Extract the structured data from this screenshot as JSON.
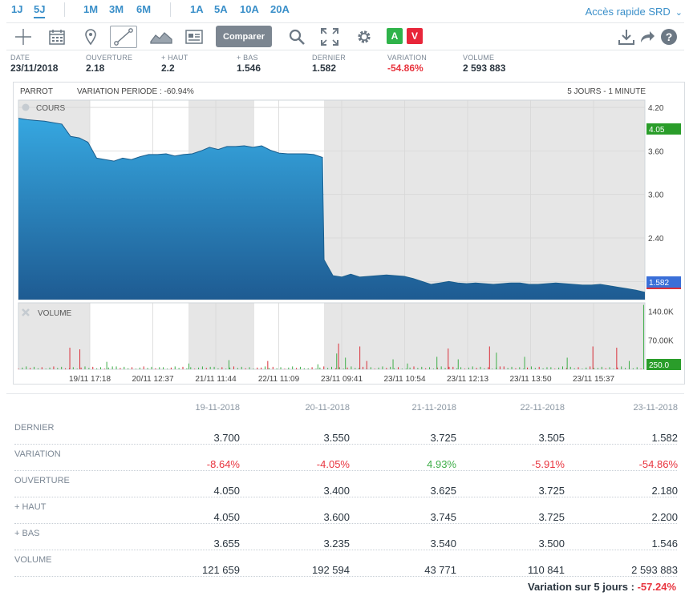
{
  "periods": [
    "1J",
    "5J",
    "1M",
    "3M",
    "6M",
    "1A",
    "5A",
    "10A",
    "20A"
  ],
  "active_period": "5J",
  "srd_link": "Accès rapide SRD",
  "toolbar": {
    "comparer_label": "Comparer",
    "badge_a": "A",
    "badge_v": "V",
    "icons": [
      "crosshair-icon",
      "calendar-icon",
      "pin-icon",
      "line-draw-icon",
      "area-chart-icon",
      "news-icon",
      "search-icon",
      "fullscreen-icon",
      "gear-icon",
      "download-icon",
      "share-icon",
      "help-icon"
    ],
    "colors": {
      "badge_a": "#2fb34a",
      "badge_v": "#e8263a",
      "comparer": "#7c8691"
    }
  },
  "quote": [
    {
      "label": "DATE",
      "value": "23/11/2018"
    },
    {
      "label": "OUVERTURE",
      "value": "2.18"
    },
    {
      "label": "+ HAUT",
      "value": "2.2"
    },
    {
      "label": "+ BAS",
      "value": "1.546"
    },
    {
      "label": "DERNIER",
      "value": "1.582"
    },
    {
      "label": "VARIATION",
      "value": "-54.86%"
    },
    {
      "label": "VOLUME",
      "value": "2 593 883"
    }
  ],
  "chart": {
    "name": "PARROT",
    "variation_period": "VARIATION PERIODE : -60.94%",
    "interval": "5 JOURS - 1 MINUTE",
    "cours_label": "COURS",
    "volume_label": "VOLUME",
    "open_badge": "4.05",
    "last_badge": "1.582",
    "volume_badge": "250.0",
    "colors": {
      "area_top": "#33a3dc",
      "area_bottom": "#1f5e93",
      "open_badge": "#2a9d2a",
      "last_badge": "#3a6fd8",
      "vol_up": "#3fae49",
      "vol_down": "#d9303a"
    }
  },
  "chart_data": {
    "type": "area",
    "price": {
      "x_ticks": [
        "19/11 17:18",
        "20/11 12:37",
        "21/11 11:44",
        "22/11 11:09",
        "23/11 09:41",
        "23/11 10:54",
        "23/11 12:13",
        "23/11 13:50",
        "23/11 15:37"
      ],
      "y_ticks": [
        4.2,
        3.6,
        3.0,
        2.4,
        1.8
      ],
      "ylim": [
        1.55,
        4.3
      ],
      "series": [
        {
          "values": [
            4.05,
            4.03,
            4.02,
            4.01,
            3.99,
            3.97,
            3.8,
            3.78,
            3.72,
            3.5,
            3.48,
            3.46,
            3.5,
            3.48,
            3.52,
            3.55,
            3.55,
            3.56,
            3.53,
            3.55,
            3.56,
            3.6,
            3.65,
            3.62,
            3.66,
            3.66,
            3.67,
            3.65,
            3.67,
            3.61,
            3.57,
            3.56,
            3.56,
            3.56,
            3.55,
            3.51,
            2.1,
            1.88,
            1.86,
            1.9,
            1.86,
            1.87,
            1.88,
            1.89,
            1.88,
            1.87,
            1.84,
            1.8,
            1.76,
            1.78,
            1.8,
            1.78,
            1.77,
            1.78,
            1.77,
            1.76,
            1.77,
            1.78,
            1.78,
            1.76,
            1.76,
            1.77,
            1.78,
            1.77,
            1.76,
            1.75,
            1.75,
            1.76,
            1.74,
            1.72,
            1.7,
            1.68,
            1.65
          ]
        }
      ]
    },
    "volume": {
      "y_ticks": [
        "140.0K",
        "70.00K"
      ],
      "ylim": [
        0,
        160000
      ],
      "bars": [
        {
          "pos": 0.082,
          "v": 52000,
          "up": false
        },
        {
          "pos": 0.098,
          "v": 48000,
          "up": false
        },
        {
          "pos": 0.141,
          "v": 18000,
          "up": true
        },
        {
          "pos": 0.272,
          "v": 14000,
          "up": true
        },
        {
          "pos": 0.336,
          "v": 22000,
          "up": true
        },
        {
          "pos": 0.398,
          "v": 20000,
          "up": false
        },
        {
          "pos": 0.478,
          "v": 12000,
          "up": true
        },
        {
          "pos": 0.508,
          "v": 38000,
          "up": true
        },
        {
          "pos": 0.511,
          "v": 62000,
          "up": false
        },
        {
          "pos": 0.522,
          "v": 28000,
          "up": true
        },
        {
          "pos": 0.545,
          "v": 55000,
          "up": false
        },
        {
          "pos": 0.556,
          "v": 20000,
          "up": false
        },
        {
          "pos": 0.598,
          "v": 24000,
          "up": true
        },
        {
          "pos": 0.621,
          "v": 14000,
          "up": true
        },
        {
          "pos": 0.668,
          "v": 30000,
          "up": true
        },
        {
          "pos": 0.686,
          "v": 50000,
          "up": false
        },
        {
          "pos": 0.702,
          "v": 24000,
          "up": true
        },
        {
          "pos": 0.752,
          "v": 55000,
          "up": false
        },
        {
          "pos": 0.763,
          "v": 40000,
          "up": true
        },
        {
          "pos": 0.808,
          "v": 30000,
          "up": true
        },
        {
          "pos": 0.876,
          "v": 28000,
          "up": true
        },
        {
          "pos": 0.917,
          "v": 55000,
          "up": false
        },
        {
          "pos": 0.955,
          "v": 52000,
          "up": false
        },
        {
          "pos": 0.975,
          "v": 20000,
          "up": true
        },
        {
          "pos": 0.998,
          "v": 155000,
          "up": true
        }
      ]
    }
  },
  "table": {
    "dates": [
      "19-11-2018",
      "20-11-2018",
      "21-11-2018",
      "22-11-2018",
      "23-11-2018"
    ],
    "rows": [
      {
        "label": "DERNIER",
        "values": [
          "3.700",
          "3.550",
          "3.725",
          "3.505",
          "1.582"
        ],
        "signs": [
          "",
          "",
          "",
          "",
          ""
        ]
      },
      {
        "label": "VARIATION",
        "values": [
          "-8.64%",
          "-4.05%",
          "4.93%",
          "-5.91%",
          "-54.86%"
        ],
        "signs": [
          "neg",
          "neg",
          "pos",
          "neg",
          "neg"
        ]
      },
      {
        "label": "OUVERTURE",
        "values": [
          "4.050",
          "3.400",
          "3.625",
          "3.725",
          "2.180"
        ],
        "signs": [
          "",
          "",
          "",
          "",
          ""
        ]
      },
      {
        "label": "+ HAUT",
        "values": [
          "4.050",
          "3.600",
          "3.745",
          "3.725",
          "2.200"
        ],
        "signs": [
          "",
          "",
          "",
          "",
          ""
        ]
      },
      {
        "label": "+ BAS",
        "values": [
          "3.655",
          "3.235",
          "3.540",
          "3.500",
          "1.546"
        ],
        "signs": [
          "",
          "",
          "",
          "",
          ""
        ]
      },
      {
        "label": "VOLUME",
        "values": [
          "121 659",
          "192 594",
          "43 771",
          "110 841",
          "2 593 883"
        ],
        "signs": [
          "",
          "",
          "",
          "",
          ""
        ]
      }
    ],
    "footer_label": "Variation sur 5 jours :",
    "footer_value": "-57.24%"
  }
}
